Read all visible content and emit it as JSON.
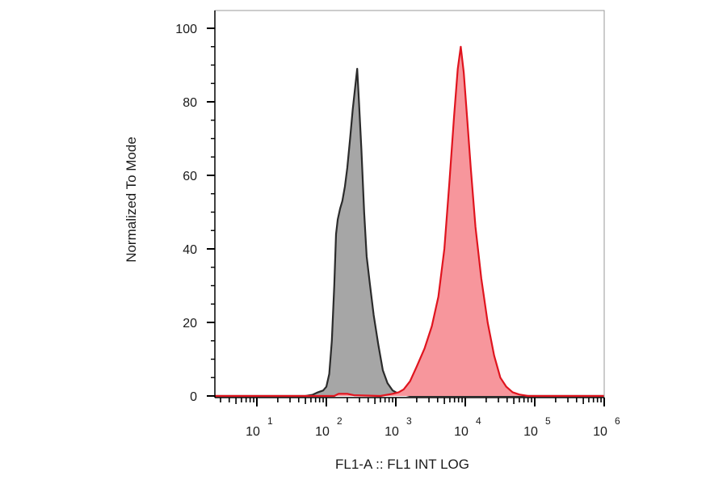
{
  "chart_data": {
    "type": "area",
    "xlabel": "FL1-A :: FL1 INT LOG",
    "ylabel": "Normalized To Mode",
    "x_scale": "log",
    "xlim": [
      1,
      1000000
    ],
    "ylim": [
      0,
      100
    ],
    "grid": false,
    "legend": "none",
    "x_ticks": [
      {
        "value": 10,
        "base": "10",
        "exp": "1"
      },
      {
        "value": 100,
        "base": "10",
        "exp": "2"
      },
      {
        "value": 1000,
        "base": "10",
        "exp": "3"
      },
      {
        "value": 10000,
        "base": "10",
        "exp": "4"
      },
      {
        "value": 100000,
        "base": "10",
        "exp": "5"
      },
      {
        "value": 1000000,
        "base": "10",
        "exp": "6"
      }
    ],
    "y_ticks": [
      {
        "value": 0,
        "label": "0"
      },
      {
        "value": 20,
        "label": "20"
      },
      {
        "value": 40,
        "label": "40"
      },
      {
        "value": 60,
        "label": "60"
      },
      {
        "value": 80,
        "label": "80"
      },
      {
        "value": 100,
        "label": "100"
      }
    ],
    "series": [
      {
        "fill": "#a6a6a6",
        "stroke": "#2b2b2b",
        "points": [
          [
            1,
            0
          ],
          [
            50,
            0
          ],
          [
            63,
            0.3
          ],
          [
            76,
            1
          ],
          [
            90,
            1.5
          ],
          [
            100,
            2.5
          ],
          [
            110,
            6
          ],
          [
            120,
            15
          ],
          [
            130,
            30
          ],
          [
            138,
            44
          ],
          [
            146,
            48
          ],
          [
            158,
            51
          ],
          [
            170,
            53
          ],
          [
            185,
            57
          ],
          [
            200,
            62
          ],
          [
            220,
            70
          ],
          [
            240,
            78
          ],
          [
            260,
            84
          ],
          [
            278,
            89
          ],
          [
            295,
            80
          ],
          [
            320,
            67
          ],
          [
            350,
            50
          ],
          [
            380,
            38
          ],
          [
            420,
            31
          ],
          [
            480,
            22
          ],
          [
            560,
            14
          ],
          [
            650,
            7
          ],
          [
            760,
            3.5
          ],
          [
            900,
            1.5
          ],
          [
            1050,
            0.8
          ],
          [
            1300,
            0.4
          ],
          [
            1600,
            0
          ],
          [
            1000000,
            0
          ]
        ]
      },
      {
        "fill": "#f7969c",
        "stroke": "#e0141e",
        "points": [
          [
            1,
            0
          ],
          [
            130,
            0
          ],
          [
            150,
            0.6
          ],
          [
            200,
            0.6
          ],
          [
            250,
            0.2
          ],
          [
            600,
            0
          ],
          [
            900,
            0.6
          ],
          [
            1100,
            1
          ],
          [
            1300,
            1.8
          ],
          [
            1600,
            4
          ],
          [
            2000,
            8
          ],
          [
            2600,
            13
          ],
          [
            3300,
            19
          ],
          [
            4100,
            27
          ],
          [
            5000,
            40
          ],
          [
            5900,
            58
          ],
          [
            6900,
            76
          ],
          [
            7800,
            89
          ],
          [
            8600,
            95
          ],
          [
            9500,
            88
          ],
          [
            10700,
            75
          ],
          [
            12000,
            62
          ],
          [
            14000,
            46
          ],
          [
            17000,
            32
          ],
          [
            21000,
            20
          ],
          [
            26000,
            11
          ],
          [
            32000,
            5
          ],
          [
            39000,
            2.5
          ],
          [
            48000,
            1
          ],
          [
            60000,
            0.4
          ],
          [
            80000,
            0
          ],
          [
            1000000,
            0
          ]
        ]
      }
    ]
  }
}
